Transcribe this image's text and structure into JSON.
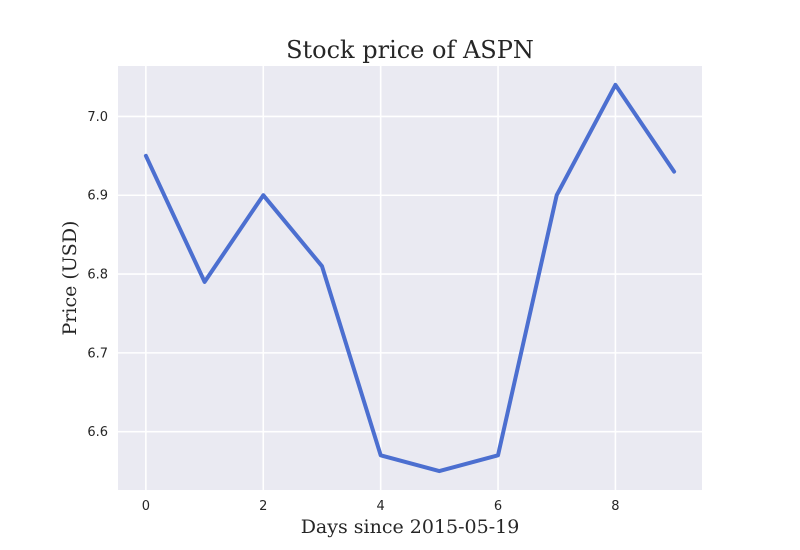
{
  "chart_data": {
    "type": "line",
    "title": "Stock price of ASPN",
    "xlabel": "Days since 2015-05-19",
    "ylabel": "Price (USD)",
    "x": [
      0,
      1,
      2,
      3,
      4,
      5,
      6,
      7,
      8,
      9
    ],
    "series": [
      {
        "values": [
          6.95,
          6.79,
          6.9,
          6.81,
          6.57,
          6.55,
          6.57,
          6.9,
          7.04,
          6.93
        ]
      }
    ],
    "xlim": [
      -0.475,
      9.475
    ],
    "ylim": [
      6.526,
      7.064
    ],
    "xticks": [
      "0",
      "2",
      "4",
      "6",
      "8"
    ],
    "yticks": [
      "6.6",
      "6.7",
      "6.8",
      "6.9",
      "7.0"
    ],
    "grid": true,
    "colors": {
      "line": "#4c6fd0",
      "plot_background": "#eaeaf2",
      "grid": "#ffffff"
    }
  }
}
